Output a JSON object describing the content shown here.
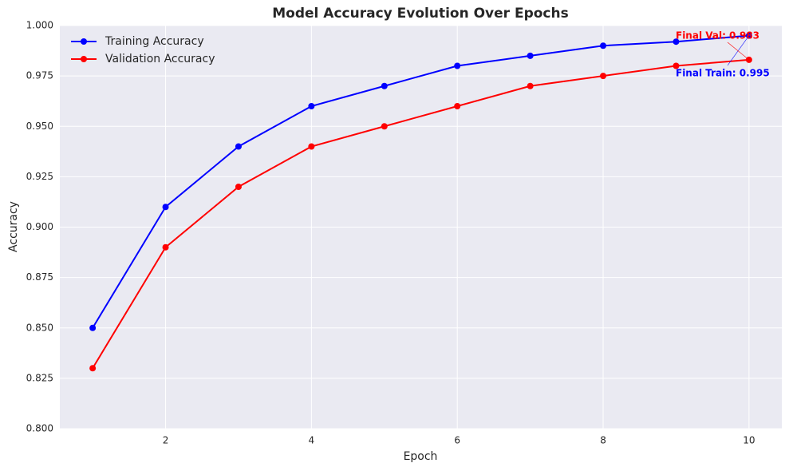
{
  "chart_data": {
    "type": "line",
    "title": "Model Accuracy Evolution Over Epochs",
    "x_label": "Epoch",
    "y_label": "Accuracy",
    "x": [
      1,
      2,
      3,
      4,
      5,
      6,
      7,
      8,
      9,
      10
    ],
    "series": [
      {
        "name": "Training Accuracy",
        "color": "#0000ff",
        "values": [
          0.85,
          0.91,
          0.94,
          0.96,
          0.97,
          0.98,
          0.985,
          0.99,
          0.992,
          0.995
        ]
      },
      {
        "name": "Validation Accuracy",
        "color": "#ff0000",
        "values": [
          0.83,
          0.89,
          0.92,
          0.94,
          0.95,
          0.96,
          0.97,
          0.975,
          0.98,
          0.983
        ]
      }
    ],
    "annotations": [
      "Final Train: 0.995",
      "Final Val: 0.983"
    ],
    "xlim": [
      0.55,
      10.45
    ],
    "xticks": [
      2,
      4,
      6,
      8,
      10
    ],
    "ylim": [
      0.8,
      1.0
    ],
    "yticks": [
      {
        "value": 0.8,
        "label": "0.800"
      },
      {
        "value": 0.825,
        "label": "0.825"
      },
      {
        "value": 0.85,
        "label": "0.850"
      },
      {
        "value": 0.875,
        "label": "0.875"
      },
      {
        "value": 0.9,
        "label": "0.900"
      },
      {
        "value": 0.925,
        "label": "0.925"
      },
      {
        "value": 0.95,
        "label": "0.950"
      },
      {
        "value": 0.975,
        "label": "0.975"
      },
      {
        "value": 1.0,
        "label": "1.000"
      }
    ],
    "grid": true,
    "legend_position": "upper-left"
  }
}
